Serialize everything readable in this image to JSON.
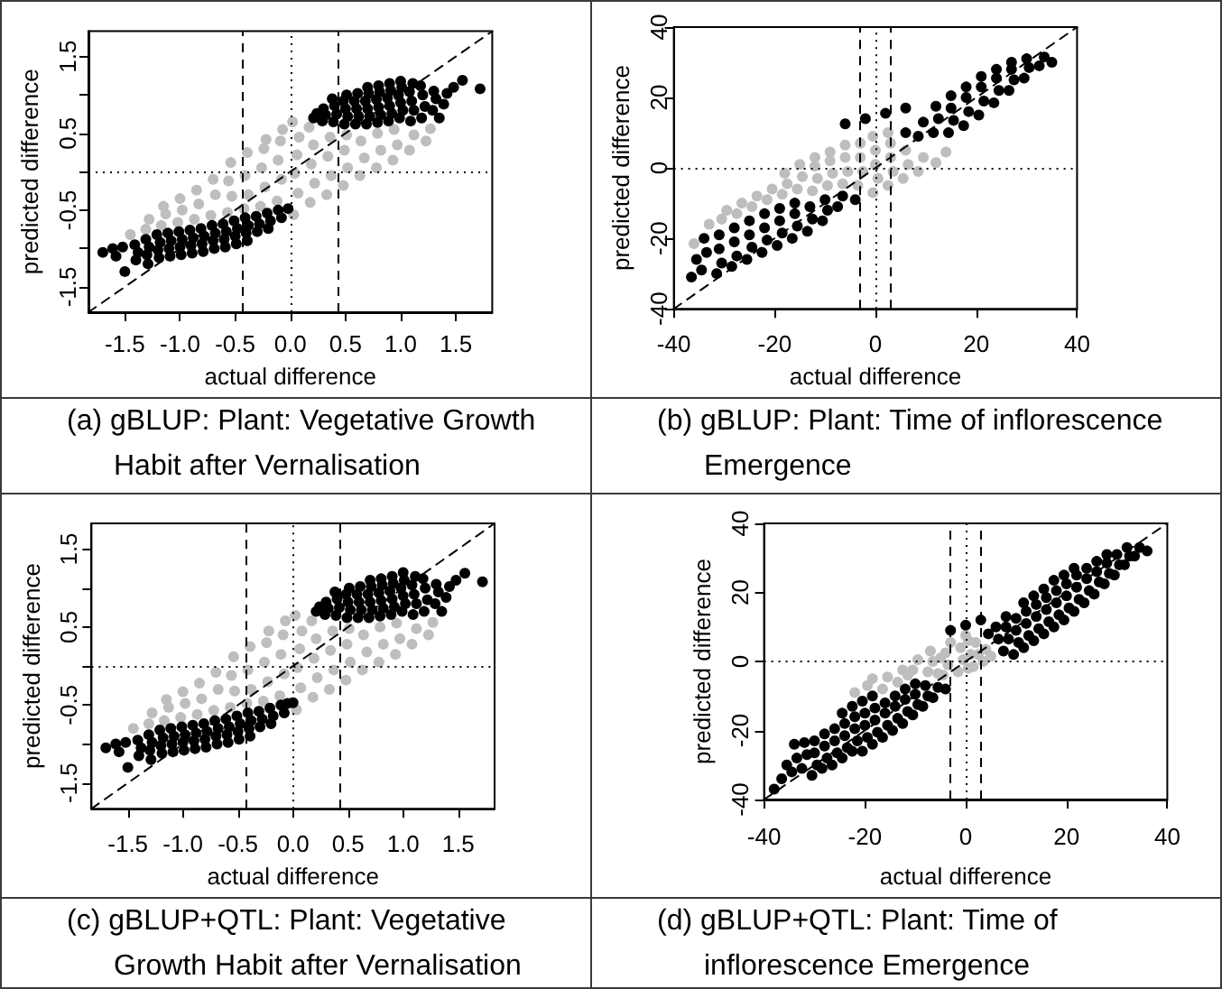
{
  "chart_data": [
    {
      "type": "scatter",
      "title": "(a) gBLUP: Plant: Vegetative Growth Habit after Vernalisation",
      "xlabel": "actual difference",
      "ylabel": "predicted difference",
      "xlim": [
        -1.83,
        1.83
      ],
      "ylim": [
        -1.83,
        1.83
      ],
      "xticks": [
        -1.5,
        {
          "value": -1,
          "label": "-1.0"
        },
        -0.5,
        {
          "value": 0,
          "label": "0.0"
        },
        0.5,
        {
          "value": 1,
          "label": "1.0"
        },
        1.5
      ],
      "yticks": [
        -1.5,
        {
          "value": -1,
          "label": null
        },
        -0.5,
        {
          "value": 0,
          "label": null
        },
        0.5,
        {
          "value": 1,
          "label": null
        },
        1.5
      ],
      "marker": "circle",
      "ref_lines": [
        {
          "axis": "x",
          "value": -0.43,
          "line_style": "dashed"
        },
        {
          "axis": "x",
          "value": 0,
          "line_style": "dotted"
        },
        {
          "axis": "x",
          "value": 0.43,
          "line_style": "dashed"
        },
        {
          "axis": "y",
          "value": 0,
          "line_style": "dotted"
        }
      ],
      "series": [
        {
          "color": "#bebebe",
          "x": [
            -1.45,
            -1.31,
            -1.28,
            -1.17,
            -1.13,
            -1.15,
            -1.02,
            -0.98,
            -1.0,
            -0.87,
            -0.83,
            -0.85,
            -0.72,
            -0.68,
            -0.7,
            -0.57,
            -0.53,
            -0.56,
            -0.54,
            -0.42,
            -0.38,
            -0.41,
            -0.39,
            -0.27,
            -0.23,
            -0.26,
            -0.24,
            -0.22,
            -0.12,
            -0.08,
            -0.11,
            -0.09,
            -0.07,
            0.03,
            0.07,
            0.04,
            0.06,
            0.08,
            0.02,
            0.18,
            0.22,
            0.19,
            0.21,
            0.17,
            0.33,
            0.37,
            0.34,
            0.36,
            0.48,
            0.52,
            0.49,
            0.51,
            0.63,
            0.67,
            0.64,
            0.78,
            0.82,
            0.79,
            0.93,
            0.97,
            0.94,
            1.08,
            1.12,
            1.23,
            1.27
          ],
          "values": [
            -0.82,
            -0.75,
            -0.62,
            -0.7,
            -0.55,
            -0.45,
            -0.66,
            -0.5,
            -0.35,
            -0.62,
            -0.42,
            -0.24,
            -0.57,
            -0.3,
            -0.1,
            -0.53,
            -0.32,
            -0.12,
            0.12,
            -0.48,
            -0.3,
            -0.05,
            0.25,
            -0.45,
            -0.2,
            0.05,
            0.3,
            0.42,
            -0.38,
            -0.1,
            0.15,
            0.4,
            0.55,
            -0.56,
            -0.28,
            -0.02,
            0.22,
            0.45,
            0.65,
            -0.4,
            -0.15,
            0.1,
            0.35,
            0.58,
            -0.3,
            -0.05,
            0.2,
            0.45,
            -0.18,
            0.05,
            0.28,
            0.48,
            -0.05,
            0.18,
            0.4,
            0.05,
            0.28,
            0.5,
            0.15,
            0.35,
            0.55,
            0.28,
            0.48,
            0.4,
            0.56
          ]
        },
        {
          "color": "#000000",
          "x": [
            0.21,
            0.24,
            0.29,
            0.32,
            0.3,
            0.39,
            0.42,
            0.4,
            0.38,
            0.49,
            0.52,
            0.5,
            0.48,
            0.51,
            0.59,
            0.62,
            0.6,
            0.58,
            0.61,
            0.69,
            0.72,
            0.7,
            0.68,
            0.71,
            0.7,
            0.79,
            0.82,
            0.8,
            0.78,
            0.81,
            0.8,
            0.89,
            0.92,
            0.9,
            0.88,
            0.91,
            0.9,
            0.99,
            1.02,
            1.0,
            0.98,
            1.01,
            1.0,
            1.09,
            1.12,
            1.1,
            1.08,
            1.11,
            1.19,
            1.22,
            1.2,
            1.18,
            1.29,
            1.32,
            1.3,
            1.39,
            1.42,
            1.56,
            1.72,
            1.48,
            1.35,
            -1.7,
            -1.61,
            -1.58,
            -1.5,
            -1.52,
            -1.41,
            -1.38,
            -1.4,
            -1.31,
            -1.28,
            -1.3,
            -1.29,
            -1.21,
            -1.18,
            -1.2,
            -1.19,
            -1.11,
            -1.08,
            -1.1,
            -1.09,
            -1.01,
            -0.98,
            -1.0,
            -0.99,
            -0.91,
            -0.88,
            -0.9,
            -0.89,
            -0.81,
            -0.78,
            -0.8,
            -0.79,
            -0.71,
            -0.68,
            -0.7,
            -0.69,
            -0.61,
            -0.58,
            -0.6,
            -0.59,
            -0.51,
            -0.48,
            -0.5,
            -0.49,
            -0.41,
            -0.38,
            -0.4,
            -0.39,
            -0.31,
            -0.28,
            -0.3,
            -0.21,
            -0.18,
            -0.2,
            -0.11,
            -0.08,
            -0.02
          ],
          "values": [
            0.7,
            0.76,
            0.66,
            0.74,
            0.82,
            0.65,
            0.75,
            0.86,
            0.95,
            0.62,
            0.72,
            0.82,
            0.92,
            1.0,
            0.62,
            0.72,
            0.82,
            0.92,
            1.02,
            0.62,
            0.72,
            0.82,
            0.92,
            1.02,
            1.1,
            0.64,
            0.74,
            0.84,
            0.94,
            1.04,
            1.12,
            0.66,
            0.76,
            0.86,
            0.96,
            1.06,
            1.15,
            0.7,
            0.8,
            0.9,
            1.0,
            1.1,
            1.18,
            0.66,
            0.8,
            0.92,
            1.04,
            1.15,
            0.7,
            0.85,
            1.0,
            1.12,
            0.8,
            0.95,
            1.05,
            0.88,
            1.02,
            1.19,
            1.08,
            1.1,
            0.7,
            -1.05,
            -1.0,
            -1.1,
            -1.3,
            -0.98,
            -0.95,
            -1.05,
            -1.15,
            -0.88,
            -0.98,
            -1.08,
            -1.2,
            -0.82,
            -0.92,
            -1.02,
            -1.12,
            -0.8,
            -0.9,
            -1.0,
            -1.1,
            -0.78,
            -0.88,
            -0.98,
            -1.08,
            -0.76,
            -0.86,
            -0.96,
            -1.06,
            -0.74,
            -0.84,
            -0.94,
            -1.04,
            -0.7,
            -0.8,
            -0.9,
            -1.0,
            -0.68,
            -0.78,
            -0.88,
            -0.98,
            -0.64,
            -0.74,
            -0.84,
            -0.94,
            -0.6,
            -0.7,
            -0.8,
            -0.9,
            -0.58,
            -0.68,
            -0.78,
            -0.54,
            -0.64,
            -0.74,
            -0.5,
            -0.6,
            -0.48
          ]
        },
        {
          "type": "line",
          "color": "#000000",
          "line_style": "dashed",
          "marker": "none",
          "x": [
            -1.83,
            1.83
          ],
          "values": [
            -1.83,
            1.83
          ]
        }
      ]
    },
    {
      "type": "scatter",
      "title": "(b) gBLUP: Plant: Time of inflorescence Emergence",
      "xlabel": "actual difference",
      "ylabel": "predicted difference",
      "xlim": [
        -40,
        40
      ],
      "ylim": [
        -40,
        40
      ],
      "xticks": [
        -40,
        -20,
        0,
        20,
        40
      ],
      "yticks": [
        -40,
        -20,
        0,
        20,
        40
      ],
      "marker": "circle",
      "ref_lines": [
        {
          "axis": "x",
          "value": -3,
          "line_style": "dashed"
        },
        {
          "axis": "x",
          "value": 0,
          "line_style": "dotted"
        },
        {
          "axis": "x",
          "value": 3,
          "line_style": "dashed"
        },
        {
          "axis": "y",
          "value": 0,
          "line_style": "dotted"
        }
      ],
      "series": [
        {
          "color": "#bebebe",
          "x": [
            -36,
            -33,
            -30.5,
            -29.5,
            -27.5,
            -26.5,
            -24.5,
            -23.5,
            -21.5,
            -20.5,
            -18.5,
            -17.5,
            -18,
            -15.5,
            -14.5,
            -15,
            -12.5,
            -11.5,
            -12,
            -12,
            -9.5,
            -8.5,
            -9,
            -9,
            -6.5,
            -5.5,
            -6,
            -6,
            -3.5,
            -2.5,
            -3,
            -3,
            -0.5,
            0.5,
            0,
            0,
            -0.5,
            2.5,
            3.5,
            3,
            3,
            2.5,
            5.5,
            6.5,
            6,
            8.5,
            9.5,
            12,
            14
          ],
          "values": [
            -21.5,
            -16,
            -14.5,
            -12,
            -13,
            -10,
            -11,
            -8,
            -9,
            -6,
            -7.5,
            -4.5,
            -1.5,
            -6,
            -2.5,
            1,
            -6.5,
            -3,
            0.5,
            3,
            -5,
            -1.5,
            2,
            4.5,
            -4.5,
            -1,
            3,
            6.5,
            -5,
            -1,
            3,
            7,
            -7,
            -3,
            1,
            5,
            9,
            -5,
            -1,
            3,
            7,
            10,
            -3,
            1,
            5,
            -1,
            3,
            1.5,
            4.5
          ]
        },
        {
          "color": "#000000",
          "x": [
            -36.5,
            -35.5,
            -34.5,
            -33.5,
            -34,
            -31.5,
            -30.5,
            -31,
            -31,
            -28.5,
            -27.5,
            -28,
            -28,
            -25.5,
            -24.5,
            -25,
            -25,
            -22.5,
            -21.5,
            -22,
            -22,
            -19.5,
            -18.5,
            -19,
            -19,
            -16.5,
            -15.5,
            -16,
            -16,
            -13.5,
            -12.5,
            -13,
            -10.5,
            -9.5,
            -10,
            -7.5,
            -6.5,
            -4,
            -6,
            -2,
            2,
            6,
            6,
            8.5,
            9.5,
            11.5,
            12.5,
            12,
            14.5,
            15.5,
            15,
            15,
            17.5,
            18.5,
            18,
            18,
            20.5,
            21.5,
            21,
            21,
            23.5,
            24.5,
            24,
            24,
            26.5,
            27.5,
            27,
            27,
            29.5,
            30.5,
            30,
            32.5,
            33.5,
            35
          ],
          "values": [
            -31,
            -26,
            -29,
            -24,
            -20,
            -30,
            -27,
            -23,
            -19,
            -28,
            -25,
            -21,
            -17,
            -26,
            -22.5,
            -19,
            -15,
            -24,
            -20.5,
            -17,
            -13,
            -22,
            -18.5,
            -15,
            -11.5,
            -20,
            -16.5,
            -13,
            -10,
            -18,
            -14.5,
            -11,
            -15,
            -12,
            -9,
            -11,
            -8,
            -9,
            12.5,
            14,
            15.5,
            17,
            10,
            9,
            13,
            10,
            14,
            17.5,
            10,
            13.5,
            17,
            20.5,
            12,
            16,
            20,
            23,
            15,
            19,
            23,
            26,
            18.5,
            22,
            25.5,
            28,
            22,
            25,
            28,
            30,
            25.5,
            28.5,
            31,
            29,
            31.5,
            30
          ]
        },
        {
          "type": "line",
          "color": "#000000",
          "line_style": "dashed",
          "marker": "none",
          "x": [
            -40,
            40
          ],
          "values": [
            -40,
            40
          ]
        }
      ]
    },
    {
      "type": "scatter",
      "title": "(c) gBLUP+QTL: Plant: Vegetative Growth Habit after Vernalisation",
      "xlabel": "actual difference",
      "ylabel": "predicted difference",
      "xlim": [
        -1.83,
        1.83
      ],
      "ylim": [
        -1.83,
        1.83
      ],
      "xticks": [
        -1.5,
        {
          "value": -1,
          "label": "-1.0"
        },
        -0.5,
        {
          "value": 0,
          "label": "0.0"
        },
        0.5,
        {
          "value": 1,
          "label": "1.0"
        },
        1.5
      ],
      "yticks": [
        -1.5,
        {
          "value": -1,
          "label": null
        },
        -0.5,
        {
          "value": 0,
          "label": null
        },
        0.5,
        {
          "value": 1,
          "label": null
        },
        1.5
      ],
      "marker": "circle",
      "ref_lines": [
        {
          "axis": "x",
          "value": -0.43,
          "line_style": "dashed"
        },
        {
          "axis": "x",
          "value": 0,
          "line_style": "dotted"
        },
        {
          "axis": "x",
          "value": 0.43,
          "line_style": "dashed"
        },
        {
          "axis": "y",
          "value": 0,
          "line_style": "dotted"
        }
      ],
      "series": [
        {
          "color": "#bebebe",
          "x": [
            -1.45,
            -1.31,
            -1.28,
            -1.17,
            -1.13,
            -1.15,
            -1.02,
            -0.98,
            -1.0,
            -0.87,
            -0.83,
            -0.85,
            -0.72,
            -0.68,
            -0.7,
            -0.57,
            -0.53,
            -0.56,
            -0.54,
            -0.42,
            -0.38,
            -0.41,
            -0.39,
            -0.27,
            -0.23,
            -0.26,
            -0.24,
            -0.22,
            -0.12,
            -0.08,
            -0.11,
            -0.09,
            -0.07,
            0.03,
            0.07,
            0.04,
            0.06,
            0.08,
            0.02,
            0.18,
            0.22,
            0.19,
            0.21,
            0.17,
            0.33,
            0.37,
            0.34,
            0.36,
            0.48,
            0.52,
            0.49,
            0.51,
            0.63,
            0.67,
            0.64,
            0.78,
            0.82,
            0.79,
            0.93,
            0.97,
            0.94,
            1.08,
            1.12,
            1.23,
            1.27
          ],
          "values": [
            -0.8,
            -0.74,
            -0.6,
            -0.7,
            -0.53,
            -0.43,
            -0.66,
            -0.48,
            -0.33,
            -0.62,
            -0.42,
            -0.22,
            -0.57,
            -0.3,
            -0.08,
            -0.53,
            -0.32,
            -0.12,
            0.12,
            -0.48,
            -0.3,
            -0.05,
            0.25,
            -0.45,
            -0.2,
            0.05,
            0.3,
            0.45,
            -0.38,
            -0.1,
            0.15,
            0.4,
            0.58,
            -0.56,
            -0.28,
            -0.02,
            0.22,
            0.45,
            0.65,
            -0.4,
            -0.15,
            0.1,
            0.35,
            0.58,
            -0.3,
            -0.05,
            0.2,
            0.45,
            -0.18,
            0.05,
            0.28,
            0.48,
            -0.05,
            0.18,
            0.4,
            0.05,
            0.28,
            0.5,
            0.15,
            0.35,
            0.55,
            0.28,
            0.48,
            0.4,
            0.56
          ]
        },
        {
          "color": "#000000",
          "x": [
            0.21,
            0.24,
            0.29,
            0.32,
            0.3,
            0.39,
            0.42,
            0.4,
            0.38,
            0.49,
            0.52,
            0.5,
            0.48,
            0.51,
            0.59,
            0.62,
            0.6,
            0.58,
            0.61,
            0.69,
            0.72,
            0.7,
            0.68,
            0.71,
            0.7,
            0.79,
            0.82,
            0.8,
            0.78,
            0.81,
            0.8,
            0.89,
            0.92,
            0.9,
            0.88,
            0.91,
            0.9,
            0.99,
            1.02,
            1.0,
            0.98,
            1.01,
            1.0,
            1.09,
            1.12,
            1.1,
            1.08,
            1.11,
            1.19,
            1.22,
            1.2,
            1.18,
            1.29,
            1.32,
            1.3,
            1.39,
            1.42,
            1.56,
            1.72,
            1.48,
            1.35,
            -1.7,
            -1.61,
            -1.58,
            -1.5,
            -1.52,
            -1.41,
            -1.38,
            -1.4,
            -1.31,
            -1.28,
            -1.3,
            -1.29,
            -1.21,
            -1.18,
            -1.2,
            -1.19,
            -1.11,
            -1.08,
            -1.1,
            -1.09,
            -1.01,
            -0.98,
            -1.0,
            -0.99,
            -0.91,
            -0.88,
            -0.9,
            -0.89,
            -0.81,
            -0.78,
            -0.8,
            -0.79,
            -0.71,
            -0.68,
            -0.7,
            -0.69,
            -0.61,
            -0.58,
            -0.6,
            -0.59,
            -0.51,
            -0.48,
            -0.5,
            -0.49,
            -0.41,
            -0.38,
            -0.4,
            -0.39,
            -0.31,
            -0.28,
            -0.3,
            -0.21,
            -0.18,
            -0.2,
            -0.11,
            -0.08,
            -0.05,
            0.0
          ],
          "values": [
            0.7,
            0.76,
            0.66,
            0.74,
            0.82,
            0.65,
            0.75,
            0.86,
            0.95,
            0.62,
            0.72,
            0.82,
            0.92,
            1.0,
            0.62,
            0.72,
            0.82,
            0.92,
            1.02,
            0.62,
            0.72,
            0.82,
            0.92,
            1.02,
            1.1,
            0.64,
            0.74,
            0.84,
            0.94,
            1.04,
            1.12,
            0.66,
            0.76,
            0.86,
            0.96,
            1.06,
            1.15,
            0.7,
            0.8,
            0.9,
            1.0,
            1.1,
            1.2,
            0.66,
            0.8,
            0.92,
            1.04,
            1.15,
            0.7,
            0.85,
            1.0,
            1.12,
            0.8,
            0.95,
            1.05,
            0.88,
            1.02,
            1.19,
            1.08,
            1.1,
            0.7,
            -1.05,
            -1.0,
            -1.1,
            -1.3,
            -0.98,
            -0.95,
            -1.05,
            -1.15,
            -0.88,
            -0.98,
            -1.08,
            -1.2,
            -0.82,
            -0.92,
            -1.02,
            -1.12,
            -0.8,
            -0.9,
            -1.0,
            -1.1,
            -0.78,
            -0.88,
            -0.98,
            -1.08,
            -0.76,
            -0.86,
            -0.96,
            -1.06,
            -0.74,
            -0.84,
            -0.94,
            -1.04,
            -0.7,
            -0.8,
            -0.9,
            -1.0,
            -0.68,
            -0.78,
            -0.88,
            -0.98,
            -0.64,
            -0.74,
            -0.84,
            -0.94,
            -0.6,
            -0.7,
            -0.8,
            -0.9,
            -0.58,
            -0.68,
            -0.78,
            -0.54,
            -0.64,
            -0.74,
            -0.5,
            -0.6,
            -0.48,
            -0.47
          ]
        },
        {
          "type": "line",
          "color": "#000000",
          "line_style": "dashed",
          "marker": "none",
          "x": [
            -1.83,
            1.83
          ],
          "values": [
            -1.83,
            1.83
          ]
        }
      ]
    },
    {
      "type": "scatter",
      "title": "(d) gBLUP+QTL: Plant: Time of inflorescence Emergence",
      "xlabel": "actual difference",
      "ylabel": "predicted difference",
      "xlim": [
        -40,
        40
      ],
      "ylim": [
        -40,
        40
      ],
      "xticks": [
        -40,
        -20,
        0,
        20,
        40
      ],
      "yticks": [
        -40,
        -20,
        0,
        20,
        40
      ],
      "marker": "circle",
      "ref_lines": [
        {
          "axis": "x",
          "value": -3,
          "line_style": "dashed"
        },
        {
          "axis": "x",
          "value": 0,
          "line_style": "dotted"
        },
        {
          "axis": "x",
          "value": 3,
          "line_style": "dashed"
        },
        {
          "axis": "y",
          "value": 0,
          "line_style": "dotted"
        }
      ],
      "series": [
        {
          "color": "#bebebe",
          "x": [
            -22,
            -19.5,
            -18.5,
            -16.5,
            -15.5,
            -13.5,
            -12.5,
            -11.5,
            -10.5,
            -9.5,
            -7.5,
            -6.5,
            -7,
            -5.5,
            -5,
            -4.5,
            -3.5,
            -4,
            -3,
            -1.5,
            -0.5,
            -1,
            0,
            0.5,
            1,
            0.5,
            1.5,
            2.5,
            2,
            3.5,
            4,
            5
          ],
          "values": [
            -9,
            -7,
            -5,
            -8,
            -4.5,
            -6,
            -2.5,
            -4,
            -2.5,
            0.5,
            -3,
            0,
            3,
            -3.5,
            1,
            -4,
            -1,
            2.5,
            5.5,
            -3,
            0.5,
            4,
            7.5,
            -2,
            2,
            6,
            -1.5,
            2,
            5.5,
            0,
            3.5,
            1.5
          ]
        },
        {
          "color": "#000000",
          "x": [
            -38,
            -36.5,
            -35.5,
            -34.5,
            -33.5,
            -34,
            -32.5,
            -31.5,
            -32,
            -30.5,
            -29.5,
            -30,
            -30,
            -28.5,
            -27.5,
            -28,
            -28,
            -26.5,
            -25.5,
            -26,
            -26,
            -24.5,
            -23.5,
            -24,
            -24,
            -24.5,
            -22.5,
            -21.5,
            -22,
            -22,
            -22.5,
            -20.5,
            -19.5,
            -20,
            -20,
            -20.5,
            -18.5,
            -17.5,
            -18,
            -18,
            -18.5,
            -16.5,
            -15.5,
            -16,
            -16,
            -14.5,
            -13.5,
            -14,
            -14,
            -12.5,
            -11.5,
            -12,
            -12,
            -10.5,
            -9.5,
            -10,
            -10,
            -8.5,
            -7.5,
            -8,
            -6.5,
            -5.5,
            -4,
            -3,
            0,
            3,
            4.5,
            6.5,
            6,
            7.5,
            8.5,
            8,
            8,
            9.5,
            10.5,
            10,
            10,
            11.5,
            12.5,
            12,
            12,
            11.5,
            13.5,
            14.5,
            14,
            14,
            13.5,
            15.5,
            16.5,
            16,
            16,
            15.5,
            17.5,
            18.5,
            18,
            18,
            17.5,
            19.5,
            20.5,
            20,
            20,
            19.5,
            21.5,
            22.5,
            22,
            22,
            21.5,
            23.5,
            24.5,
            24,
            24,
            25.5,
            26.5,
            26,
            26,
            27.5,
            28.5,
            28,
            28,
            29.5,
            30.5,
            30,
            31.5,
            32.5,
            32,
            33.5,
            34.5,
            36
          ],
          "values": [
            -37,
            -34,
            -30,
            -32,
            -28,
            -24,
            -31,
            -27,
            -23.5,
            -33,
            -30,
            -26.5,
            -23,
            -31,
            -28,
            -24.5,
            -21,
            -30,
            -26.5,
            -23,
            -19.5,
            -28,
            -25,
            -21.5,
            -18,
            -15,
            -26,
            -23,
            -19.5,
            -16,
            -13,
            -26,
            -22,
            -18.5,
            -15,
            -11.5,
            -24,
            -20.5,
            -17,
            -13.5,
            -10,
            -22,
            -18.5,
            -15,
            -12,
            -20,
            -16.5,
            -13,
            -10,
            -18,
            -14.5,
            -11,
            -8,
            -15.5,
            -12.5,
            -9.5,
            -6.5,
            -13,
            -10,
            -7,
            -10.5,
            -7.5,
            -8,
            9,
            10.5,
            12,
            8,
            6.5,
            10,
            3,
            6.5,
            10,
            13,
            2,
            5.5,
            9,
            12.5,
            4,
            7.5,
            11,
            14.5,
            17,
            6,
            9.5,
            13,
            16.5,
            19,
            8,
            11.5,
            15,
            18.5,
            21,
            10,
            13.5,
            17,
            20.5,
            23.5,
            12,
            15.5,
            19,
            22.5,
            25,
            14.5,
            18,
            21.5,
            25,
            27,
            17,
            20.5,
            24,
            27,
            19.5,
            23,
            26,
            29,
            22.5,
            25.5,
            28.5,
            31,
            25,
            28,
            31,
            28,
            30.5,
            33,
            30.5,
            33,
            32
          ]
        },
        {
          "type": "line",
          "color": "#000000",
          "line_style": "dashed",
          "marker": "none",
          "x": [
            -40,
            40
          ],
          "values": [
            -40,
            40
          ]
        }
      ]
    }
  ]
}
